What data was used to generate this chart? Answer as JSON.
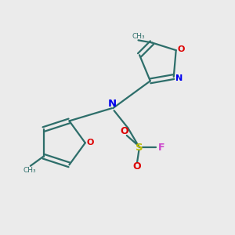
{
  "bg_color": "#ebebeb",
  "bond_color": "#2d6e6a",
  "N_color": "#0000ee",
  "O_color": "#dd0000",
  "S_color": "#bbbb00",
  "F_color": "#cc44cc",
  "figsize": [
    3.0,
    3.0
  ],
  "dpi": 100,
  "lw": 1.6,
  "xlim": [
    0,
    10
  ],
  "ylim": [
    0,
    10
  ]
}
